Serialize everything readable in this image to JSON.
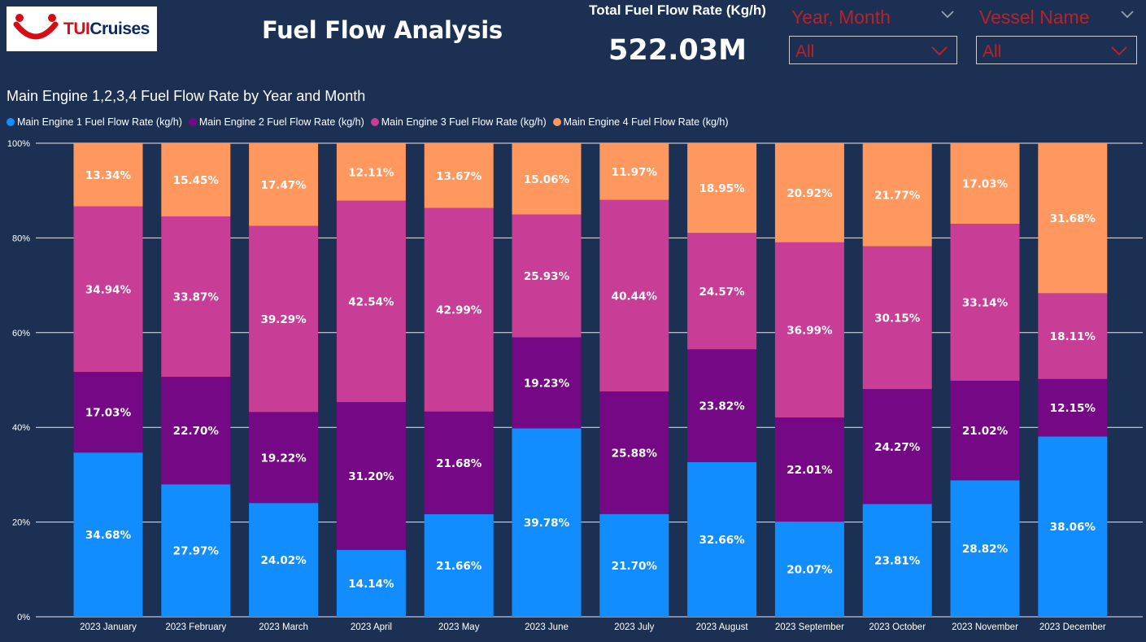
{
  "header": {
    "logo_tui": "TUI",
    "logo_cruises": "Cruises",
    "title": "Fuel Flow Analysis",
    "kpi_label": "Total Fuel Flow Rate (Kg/h)",
    "kpi_value": "522.03M"
  },
  "slicers": [
    {
      "title": "Year, Month",
      "value": "All"
    },
    {
      "title": "Vessel Name",
      "value": "All"
    }
  ],
  "colors": {
    "background": "#1b3052",
    "engine1": "#118dff",
    "engine2": "#750985",
    "engine3": "#c83d95",
    "engine4": "#ff985e",
    "slicer_text": "#b8222a"
  },
  "chart_data": {
    "type": "bar",
    "stacked": "100%",
    "title": "Main Engine 1,2,3,4 Fuel Flow Rate by Year and Month",
    "legend_position": "top-left",
    "grid": true,
    "ylim": [
      0,
      100
    ],
    "yticks": [
      "0%",
      "20%",
      "40%",
      "60%",
      "80%",
      "100%"
    ],
    "categories": [
      "2023 January",
      "2023 February",
      "2023 March",
      "2023 April",
      "2023 May",
      "2023 June",
      "2023 July",
      "2023 August",
      "2023 September",
      "2023 October",
      "2023 November",
      "2023 December"
    ],
    "series": [
      {
        "name": "Main Engine 1 Fuel Flow Rate (kg/h)",
        "color": "#118dff",
        "values": [
          34.68,
          27.97,
          24.02,
          14.14,
          21.66,
          39.78,
          21.7,
          32.66,
          20.07,
          23.81,
          28.82,
          38.06
        ]
      },
      {
        "name": "Main Engine 2 Fuel Flow Rate (kg/h)",
        "color": "#750985",
        "values": [
          17.03,
          22.7,
          19.22,
          31.2,
          21.68,
          19.23,
          25.88,
          23.82,
          22.01,
          24.27,
          21.02,
          12.15
        ]
      },
      {
        "name": "Main Engine 3 Fuel Flow Rate (kg/h)",
        "color": "#c83d95",
        "values": [
          34.94,
          33.87,
          39.29,
          42.54,
          42.99,
          25.93,
          40.44,
          24.57,
          36.99,
          30.15,
          33.14,
          18.11
        ]
      },
      {
        "name": "Main Engine 4 Fuel Flow Rate (kg/h)",
        "color": "#ff985e",
        "values": [
          13.34,
          15.45,
          17.47,
          12.11,
          13.67,
          15.06,
          11.97,
          18.95,
          20.92,
          21.77,
          17.03,
          31.68
        ]
      }
    ]
  }
}
